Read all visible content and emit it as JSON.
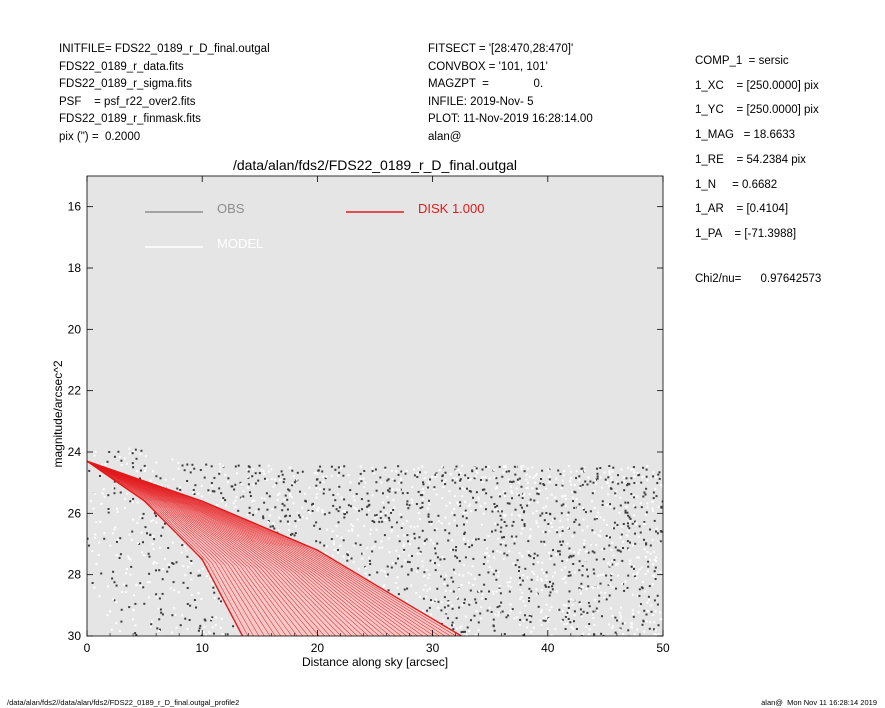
{
  "header_left": [
    "INITFILE= FDS22_0189_r_D_final.outgal",
    "FDS22_0189_r_data.fits",
    "FDS22_0189_r_sigma.fits",
    "PSF    = psf_r22_over2.fits",
    "FDS22_0189_r_finmask.fits",
    "pix (\") =  0.2000"
  ],
  "header_mid": [
    "FITSECT = '[28:470,28:470]'",
    "CONVBOX = '101, 101'",
    "MAGZPT  =              0.",
    "INFILE: 2019-Nov- 5",
    "PLOT: 11-Nov-2019 16:28:14.00",
    "alan@"
  ],
  "header_right": [
    "COMP_1  = sersic",
    "1_XC    = [250.0000] pix",
    "1_YC    = [250.0000] pix",
    "1_MAG   = 18.6633",
    "1_RE    = 54.2384 pix",
    "1_N     = 0.6682",
    "1_AR    = [0.4104]",
    "1_PA    = [-71.3988]"
  ],
  "chi2": "Chi2/nu=      0.97642573",
  "footer_left": "/data/alan/fds2//data/alan/fds2/FDS22_0189_r_D_final.outgal_profile2",
  "footer_right": "alan@  Mon Nov 11 16:28:14 2019",
  "chart_data": {
    "type": "scatter",
    "title": "/data/alan/fds2/FDS22_0189_r_D_final.outgal",
    "xlabel": "Distance along sky [arcsec]",
    "ylabel": "magnitude/arcsec^2",
    "xlim": [
      0,
      50
    ],
    "ylim": [
      30,
      15
    ],
    "x_ticks": [
      0,
      10,
      20,
      30,
      40,
      50
    ],
    "y_ticks": [
      16,
      18,
      20,
      22,
      24,
      26,
      28,
      30
    ],
    "background": "#e5e5e5",
    "legend": [
      {
        "label": "OBS",
        "color": "#8c8c8c"
      },
      {
        "label": "MODEL",
        "color": "#ffffff"
      },
      {
        "label": "DISK  1.000",
        "color": "#e31a1c"
      }
    ],
    "obs_color": "#3c3c3c",
    "obs_light_color": "#ffffff",
    "series": [
      {
        "name": "OBS",
        "description": "scatter of observed pixel surface brightness, upper envelope ~24.0 at x=0 rising to ~24.8 beyond x=10, extending below 30",
        "upper_envelope": [
          [
            0,
            24.0
          ],
          [
            5,
            24.3
          ],
          [
            10,
            24.7
          ],
          [
            20,
            24.8
          ],
          [
            50,
            24.8
          ]
        ]
      },
      {
        "name": "DISK  1.000",
        "type": "fan",
        "origin": [
          0,
          24.3
        ],
        "inner_edge": [
          [
            0,
            24.3
          ],
          [
            5,
            25.6
          ],
          [
            10,
            27.5
          ],
          [
            13.5,
            30
          ]
        ],
        "outer_edge": [
          [
            0,
            24.3
          ],
          [
            10,
            25.6
          ],
          [
            20,
            27.2
          ],
          [
            28,
            29.0
          ],
          [
            32.5,
            30
          ]
        ]
      }
    ]
  }
}
